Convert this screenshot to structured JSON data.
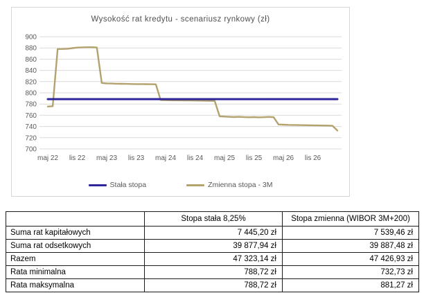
{
  "chart": {
    "title": "Wysokość  rat kredytu - scenariusz  rynkowy  (zł)",
    "legend": [
      "Stała stopa",
      "Zmienna stopa - 3M"
    ]
  },
  "chart_data": {
    "type": "line",
    "title": "Wysokość rat kredytu - scenariusz rynkowy (zł)",
    "xlabel": "",
    "ylabel": "",
    "ylim": [
      700,
      900
    ],
    "yticks": [
      700,
      720,
      740,
      760,
      780,
      800,
      820,
      840,
      860,
      880,
      900
    ],
    "grid": true,
    "legend_position": "bottom",
    "x_is_months": true,
    "x_tick_labels": [
      "maj 22",
      "lis 22",
      "maj 23",
      "lis 23",
      "maj 24",
      "lis 24",
      "maj 25",
      "lis 25",
      "maj 26",
      "lis 26"
    ],
    "x_tick_month_indices": [
      0,
      6,
      12,
      18,
      24,
      30,
      36,
      42,
      48,
      54
    ],
    "colors": {
      "fixed": "#2e249c",
      "variable": "#b3a26e",
      "grid": "#d9d9d9",
      "axis_text": "#595959"
    },
    "series": [
      {
        "name": "Stała stopa",
        "color": "#2e249c",
        "values": [
          788.72,
          788.72,
          788.72,
          788.72,
          788.72,
          788.72,
          788.72,
          788.72,
          788.72,
          788.72,
          788.72,
          788.72,
          788.72,
          788.72,
          788.72,
          788.72,
          788.72,
          788.72,
          788.72,
          788.72,
          788.72,
          788.72,
          788.72,
          788.72,
          788.72,
          788.72,
          788.72,
          788.72,
          788.72,
          788.72,
          788.72,
          788.72,
          788.72,
          788.72,
          788.72,
          788.72,
          788.72,
          788.72,
          788.72,
          788.72,
          788.72,
          788.72,
          788.72,
          788.72,
          788.72,
          788.72,
          788.72,
          788.72,
          788.72,
          788.72,
          788.72,
          788.72,
          788.72,
          788.72,
          788.72,
          788.72,
          788.72,
          788.72,
          788.72,
          788.72
        ]
      },
      {
        "name": "Zmienna stopa - 3M",
        "color": "#b3a26e",
        "values": [
          775.5,
          776.2,
          878.0,
          878.2,
          878.5,
          879.6,
          880.6,
          881.0,
          881.27,
          881.2,
          880.8,
          817.5,
          816.8,
          816.5,
          816.2,
          816.0,
          815.9,
          815.7,
          815.6,
          815.5,
          815.4,
          815.3,
          815.2,
          787.2,
          786.9,
          786.7,
          786.6,
          786.5,
          786.4,
          786.3,
          786.2,
          786.0,
          785.9,
          785.7,
          785.5,
          758.2,
          757.6,
          757.2,
          756.8,
          757.1,
          756.7,
          756.4,
          756.7,
          756.3,
          756.6,
          757.0,
          756.5,
          743.6,
          743.2,
          742.9,
          742.7,
          742.5,
          742.4,
          742.2,
          742.1,
          741.9,
          741.7,
          741.6,
          741.2,
          732.73
        ]
      }
    ]
  },
  "table": {
    "col_fixed": "Stopa stała 8,25%",
    "col_variable": "Stopa zmienna (WIBOR 3M+200)",
    "rows": [
      {
        "label": "Suma rat kapitałowych",
        "fixed": "7 445,20 zł",
        "variable": "7 539,46 zł"
      },
      {
        "label": "Suma rat odsetkowych",
        "fixed": "39 877,94 zł",
        "variable": "39 887,48 zł"
      },
      {
        "label": "Razem",
        "fixed": "47 323,14 zł",
        "variable": "47 426,93 zł"
      },
      {
        "label": "Rata minimalna",
        "fixed": "788,72 zł",
        "variable": "732,73 zł"
      },
      {
        "label": "Rata maksymalna",
        "fixed": "788,72 zł",
        "variable": "881,27 zł"
      }
    ]
  }
}
